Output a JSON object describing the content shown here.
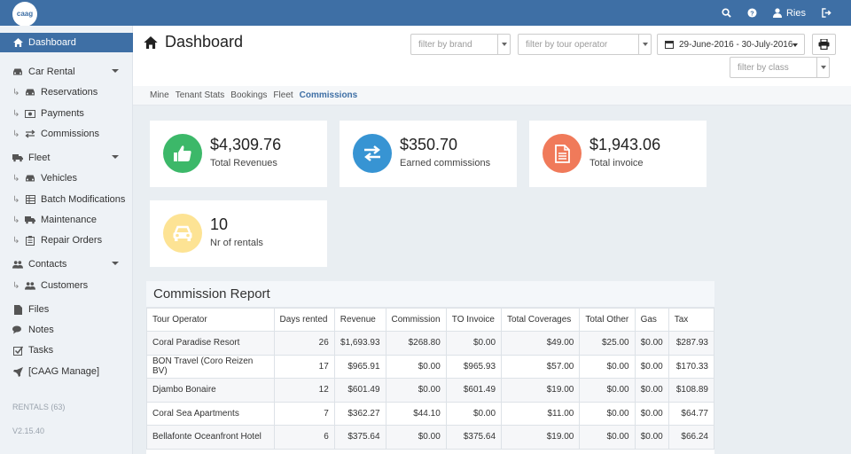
{
  "app": {
    "logo_text": "caag"
  },
  "topbar": {
    "user_name": "Ries"
  },
  "sidebar": {
    "items": [
      {
        "label": "Dashboard"
      },
      {
        "label": "Car Rental"
      },
      {
        "label": "Reservations"
      },
      {
        "label": "Payments"
      },
      {
        "label": "Commissions"
      },
      {
        "label": "Fleet"
      },
      {
        "label": "Vehicles"
      },
      {
        "label": "Batch Modifications"
      },
      {
        "label": "Maintenance"
      },
      {
        "label": "Repair Orders"
      },
      {
        "label": "Contacts"
      },
      {
        "label": "Customers"
      },
      {
        "label": "Files"
      },
      {
        "label": "Notes"
      },
      {
        "label": "Tasks"
      },
      {
        "label": "[CAAG Manage]"
      }
    ],
    "rentals_count": "RENTALS (63)",
    "version": "V2.15.40"
  },
  "header": {
    "title": "Dashboard",
    "filter_brand_placeholder": "filter by brand",
    "filter_operator_placeholder": "filter by tour operator",
    "filter_class_placeholder": "filter by class",
    "date_range": "29-June-2016 - 30-July-2016"
  },
  "tabs": [
    "Mine",
    "Tenant Stats",
    "Bookings",
    "Fleet",
    "Commissions"
  ],
  "stats": [
    {
      "value": "$4,309.76",
      "label": "Total Revenues",
      "color": "#3cb869",
      "icon": "thumbs-up-icon"
    },
    {
      "value": "$350.70",
      "label": "Earned commissions",
      "color": "#3794d3",
      "icon": "exchange-icon"
    },
    {
      "value": "$1,943.06",
      "label": "Total invoice",
      "color": "#f07a5a",
      "icon": "document-icon"
    },
    {
      "value": "10",
      "label": "Nr of rentals",
      "color": "#fde394",
      "icon": "car-icon"
    }
  ],
  "report": {
    "title": "Commission Report",
    "columns": [
      "Tour Operator",
      "Days rented",
      "Revenue",
      "Commission",
      "TO Invoice",
      "Total Coverages",
      "Total Other",
      "Gas",
      "Tax"
    ],
    "rows": [
      [
        "Coral Paradise Resort",
        "26",
        "$1,693.93",
        "$268.80",
        "$0.00",
        "$49.00",
        "$25.00",
        "$0.00",
        "$287.93"
      ],
      [
        "BON Travel (Coro Reizen BV)",
        "17",
        "$965.91",
        "$0.00",
        "$965.93",
        "$57.00",
        "$0.00",
        "$0.00",
        "$170.33"
      ],
      [
        "Djambo Bonaire",
        "12",
        "$601.49",
        "$0.00",
        "$601.49",
        "$19.00",
        "$0.00",
        "$0.00",
        "$108.89"
      ],
      [
        "Coral Sea Apartments",
        "7",
        "$362.27",
        "$44.10",
        "$0.00",
        "$11.00",
        "$0.00",
        "$0.00",
        "$64.77"
      ],
      [
        "Bellafonte Oceanfront Hotel",
        "6",
        "$375.64",
        "$0.00",
        "$375.64",
        "$19.00",
        "$0.00",
        "$0.00",
        "$66.24"
      ]
    ]
  }
}
